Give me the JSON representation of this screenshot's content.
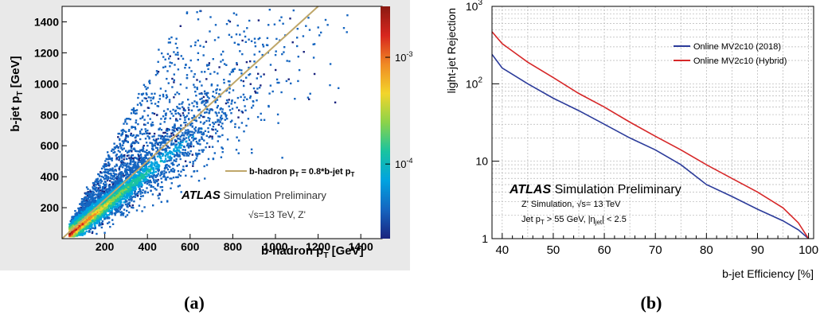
{
  "captions": {
    "a": "(a)",
    "b": "(b)"
  },
  "chart_data": [
    {
      "id": "a",
      "type": "heatmap",
      "xlabel": "b-hadron p",
      "xlabel_sub": "T",
      "xlabel_unit": " [GeV]",
      "ylabel": "b-jet p",
      "ylabel_sub": "T",
      "ylabel_unit": " [GeV]",
      "xlim": [
        0,
        1500
      ],
      "ylim": [
        0,
        1500
      ],
      "xticks": [
        200,
        400,
        600,
        800,
        1000,
        1200,
        1400
      ],
      "yticks": [
        200,
        400,
        600,
        800,
        1000,
        1200,
        1400
      ],
      "colorbar": {
        "scale": "log",
        "range": [
          2e-05,
          0.003
        ],
        "labels": [
          {
            "value": 0.001,
            "base": "10",
            "exp": "-3"
          },
          {
            "value": 0.0001,
            "base": "10",
            "exp": "-4"
          }
        ],
        "colors": [
          "#1a237e",
          "#1565c0",
          "#00a3e0",
          "#19c3a0",
          "#8bd34a",
          "#f2d52b",
          "#f08a24",
          "#d7261e",
          "#8b1a12"
        ]
      },
      "reference_line": {
        "slope": 1.25,
        "label_left": "b-hadron p",
        "label_left_sub": "T",
        "label_right": " = 0.8*b-jet p",
        "label_right_sub": "T",
        "color": "#bfa76a"
      },
      "annotation": {
        "experiment": "ATLAS",
        "status": " Simulation Preliminary",
        "conditions": "√s=13 TeV, Z'"
      },
      "distribution": {
        "ridge": "y ≈ x, broad scatter above, sparse below; core density peaks near 100–500 GeV"
      }
    },
    {
      "id": "b",
      "type": "line",
      "xlabel": "b-jet Efficiency [%]",
      "ylabel": "light-jet Rejection",
      "xlim": [
        38,
        101
      ],
      "ylim": [
        1,
        1000
      ],
      "yscale": "log",
      "grid": true,
      "xticks": [
        40,
        50,
        60,
        70,
        80,
        90,
        100
      ],
      "yticks": [
        {
          "value": 1,
          "label": "1"
        },
        {
          "value": 10,
          "label": "10"
        },
        {
          "value": 100,
          "label": "10",
          "exp": "2"
        },
        {
          "value": 1000,
          "label": "10",
          "exp": "3"
        }
      ],
      "legend_position": "top-right",
      "series": [
        {
          "name": "Online MV2c10 (2018)",
          "color": "#2b3b9a",
          "x": [
            38,
            40,
            45,
            50,
            55,
            60,
            65,
            70,
            75,
            80,
            85,
            90,
            95,
            98,
            100
          ],
          "y": [
            240,
            160,
            100,
            65,
            45,
            30,
            20,
            14,
            9,
            5,
            3.5,
            2.4,
            1.7,
            1.3,
            1.0
          ]
        },
        {
          "name": "Online MV2c10 (Hybrid)",
          "color": "#d62728",
          "x": [
            38,
            40,
            45,
            50,
            55,
            60,
            65,
            70,
            75,
            80,
            85,
            90,
            95,
            98,
            100
          ],
          "y": [
            470,
            330,
            190,
            120,
            75,
            50,
            32,
            21,
            14,
            9,
            6,
            4,
            2.5,
            1.6,
            1.0
          ]
        }
      ],
      "annotation": {
        "experiment": "ATLAS",
        "status": " Simulation Preliminary",
        "line1": "Z' Simulation, √s= 13 TeV",
        "line2_a": "Jet p",
        "line2_sub": "T",
        "line2_b": " > 55 GeV, |η",
        "line2_sub2": "jet",
        "line2_c": "| < 2.5"
      }
    }
  ]
}
